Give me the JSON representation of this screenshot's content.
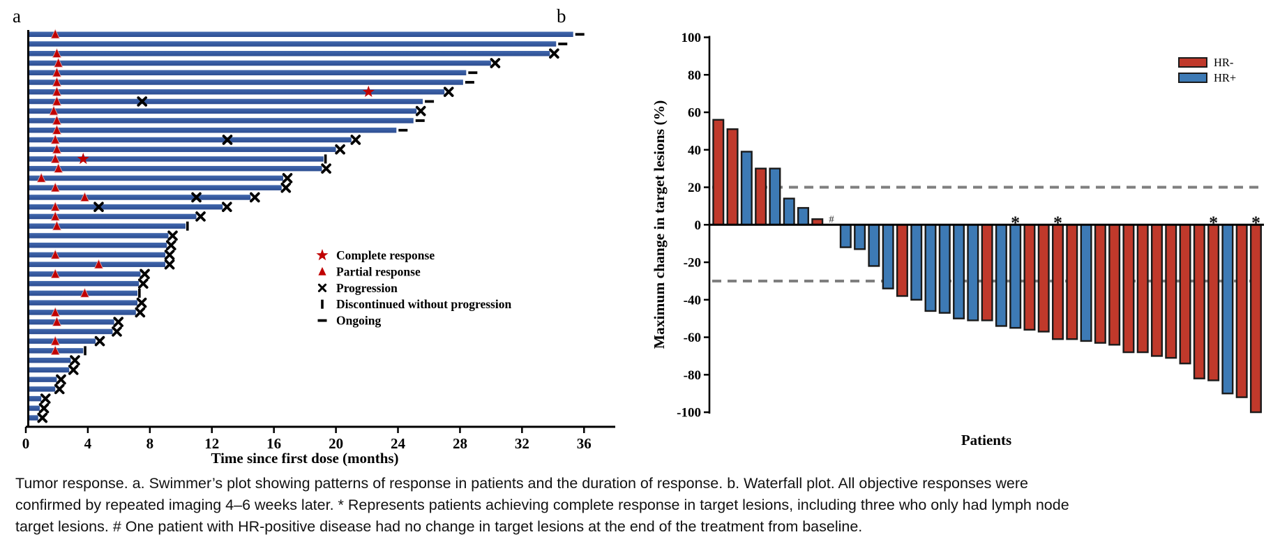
{
  "figure": {
    "panel_a_label": "a",
    "panel_b_label": "b"
  },
  "chart_data": [
    {
      "type": "bar",
      "name": "swimmer-plot",
      "orientation": "horizontal",
      "xlabel": "Time since first dose (months)",
      "xlim": [
        0,
        38
      ],
      "xticks": [
        0,
        4,
        8,
        12,
        16,
        20,
        24,
        28,
        32,
        36
      ],
      "grid": false,
      "bar_color": "#35599F",
      "marker_red": "#C00000",
      "marker_black": "#000000",
      "legend_position": "center-right",
      "legend": [
        {
          "symbol": "star",
          "label": "Complete response"
        },
        {
          "symbol": "triangle",
          "label": "Partial response"
        },
        {
          "symbol": "x",
          "label": "Progression"
        },
        {
          "symbol": "vbar",
          "label": "Discontinued without progression"
        },
        {
          "symbol": "dash",
          "label": "Ongoing"
        }
      ],
      "patients": [
        {
          "duration": 35.3,
          "pr": 1.9,
          "end": "ongoing"
        },
        {
          "duration": 34.2,
          "end": "ongoing"
        },
        {
          "duration": 33.8,
          "pr": 2.0,
          "end": "progression"
        },
        {
          "duration": 30.0,
          "pr": 2.1,
          "end": "progression"
        },
        {
          "duration": 28.4,
          "pr": 2.0,
          "end": "ongoing"
        },
        {
          "duration": 28.2,
          "pr": 2.0,
          "end": "ongoing"
        },
        {
          "duration": 27.0,
          "pr": 2.0,
          "cr": 22.1,
          "end": "progression"
        },
        {
          "duration": 25.6,
          "pr": 2.0,
          "progression": [
            7.5
          ],
          "end": "ongoing"
        },
        {
          "duration": 25.2,
          "pr": 1.8,
          "end": "progression"
        },
        {
          "duration": 25.0,
          "pr": 2.0,
          "end": "ongoing"
        },
        {
          "duration": 23.9,
          "pr": 2.0,
          "end": "ongoing"
        },
        {
          "duration": 21.0,
          "pr": 1.9,
          "progression": [
            13.0
          ],
          "end": "progression"
        },
        {
          "duration": 20.0,
          "pr": 2.0,
          "end": "progression"
        },
        {
          "duration": 19.2,
          "pr": 1.9,
          "cr": 3.7,
          "end": "discontinued"
        },
        {
          "duration": 19.1,
          "pr": 2.1,
          "end": "progression"
        },
        {
          "duration": 16.6,
          "pr": 1.0,
          "end": "progression"
        },
        {
          "duration": 16.5,
          "pr": 1.9,
          "end": "progression"
        },
        {
          "duration": 14.5,
          "pr": 3.8,
          "progression": [
            11.0
          ],
          "end": "progression"
        },
        {
          "duration": 12.7,
          "pr": 1.9,
          "progression": [
            4.7
          ],
          "end": "progression"
        },
        {
          "duration": 11.0,
          "pr": 1.9,
          "end": "progression"
        },
        {
          "duration": 10.3,
          "pr": 2.0,
          "end": "discontinued"
        },
        {
          "duration": 9.2,
          "end": "progression"
        },
        {
          "duration": 9.1,
          "end": "progression"
        },
        {
          "duration": 9.0,
          "pr": 1.9,
          "end": "progression"
        },
        {
          "duration": 9.0,
          "pr": 4.7,
          "end": "progression"
        },
        {
          "duration": 7.4,
          "pr": 1.9,
          "end": "progression"
        },
        {
          "duration": 7.3,
          "end": "progression"
        },
        {
          "duration": 7.2,
          "pr": 3.8,
          "end": "discontinued"
        },
        {
          "duration": 7.2,
          "end": "progression"
        },
        {
          "duration": 7.1,
          "pr": 1.9,
          "end": "progression"
        },
        {
          "duration": 5.7,
          "pr": 2.0,
          "end": "progression"
        },
        {
          "duration": 5.6,
          "end": "progression"
        },
        {
          "duration": 4.5,
          "pr": 1.9,
          "end": "progression"
        },
        {
          "duration": 3.7,
          "pr": 1.9,
          "end": "discontinued"
        },
        {
          "duration": 2.9,
          "end": "progression"
        },
        {
          "duration": 2.8,
          "end": "progression"
        },
        {
          "duration": 2.0,
          "end": "progression"
        },
        {
          "duration": 1.9,
          "end": "progression"
        },
        {
          "duration": 1.0,
          "end": "progression"
        },
        {
          "duration": 0.9,
          "end": "progression"
        },
        {
          "duration": 0.8,
          "end": "progression"
        }
      ]
    },
    {
      "type": "bar",
      "name": "waterfall-plot",
      "xlabel": "Patients",
      "ylabel": "Maximum change in target lesions (%)",
      "ylim": [
        -100,
        100
      ],
      "yticks": [
        100,
        80,
        60,
        40,
        20,
        0,
        -20,
        -40,
        -60,
        -80,
        -100
      ],
      "reference_lines": [
        20,
        -30
      ],
      "reference_line_color": "#7F7F7F",
      "outline_color": "#1A1A1A",
      "legend_position": "top-right",
      "legend": [
        {
          "label": "HR-",
          "color": "#C0392B"
        },
        {
          "label": "HR+",
          "color": "#3D7AB5"
        }
      ],
      "bars": [
        {
          "value": 56,
          "group": "HR-"
        },
        {
          "value": 51,
          "group": "HR-"
        },
        {
          "value": 39,
          "group": "HR+"
        },
        {
          "value": 30,
          "group": "HR-"
        },
        {
          "value": 30,
          "group": "HR+"
        },
        {
          "value": 14,
          "group": "HR+"
        },
        {
          "value": 9,
          "group": "HR+"
        },
        {
          "value": 3,
          "group": "HR-"
        },
        {
          "value": 0,
          "group": "HR+",
          "mark": "#"
        },
        {
          "value": -12,
          "group": "HR+"
        },
        {
          "value": -13,
          "group": "HR+"
        },
        {
          "value": -22,
          "group": "HR+"
        },
        {
          "value": -34,
          "group": "HR+"
        },
        {
          "value": -38,
          "group": "HR-"
        },
        {
          "value": -40,
          "group": "HR+"
        },
        {
          "value": -46,
          "group": "HR+"
        },
        {
          "value": -47,
          "group": "HR+"
        },
        {
          "value": -50,
          "group": "HR+"
        },
        {
          "value": -51,
          "group": "HR+"
        },
        {
          "value": -51,
          "group": "HR-"
        },
        {
          "value": -54,
          "group": "HR+"
        },
        {
          "value": -55,
          "group": "HR+",
          "mark": "*"
        },
        {
          "value": -56,
          "group": "HR-"
        },
        {
          "value": -57,
          "group": "HR-"
        },
        {
          "value": -61,
          "group": "HR-",
          "mark": "*"
        },
        {
          "value": -61,
          "group": "HR-"
        },
        {
          "value": -62,
          "group": "HR+"
        },
        {
          "value": -63,
          "group": "HR-"
        },
        {
          "value": -64,
          "group": "HR-"
        },
        {
          "value": -68,
          "group": "HR-"
        },
        {
          "value": -68,
          "group": "HR-"
        },
        {
          "value": -70,
          "group": "HR-"
        },
        {
          "value": -71,
          "group": "HR-"
        },
        {
          "value": -74,
          "group": "HR-"
        },
        {
          "value": -82,
          "group": "HR-"
        },
        {
          "value": -83,
          "group": "HR-",
          "mark": "*"
        },
        {
          "value": -90,
          "group": "HR+"
        },
        {
          "value": -92,
          "group": "HR-"
        },
        {
          "value": -100,
          "group": "HR-",
          "mark": "*"
        }
      ]
    }
  ],
  "caption": "Tumor response. a. Swimmer’s plot showing patterns of response in patients and the duration of response. b. Waterfall plot. All objective responses were confirmed by repeated imaging 4–6 weeks later. * Represents patients achieving complete response in target lesions, including three who only had lymph node target lesions. # One patient with HR-positive disease had no change in target lesions at the end of the treatment from baseline."
}
